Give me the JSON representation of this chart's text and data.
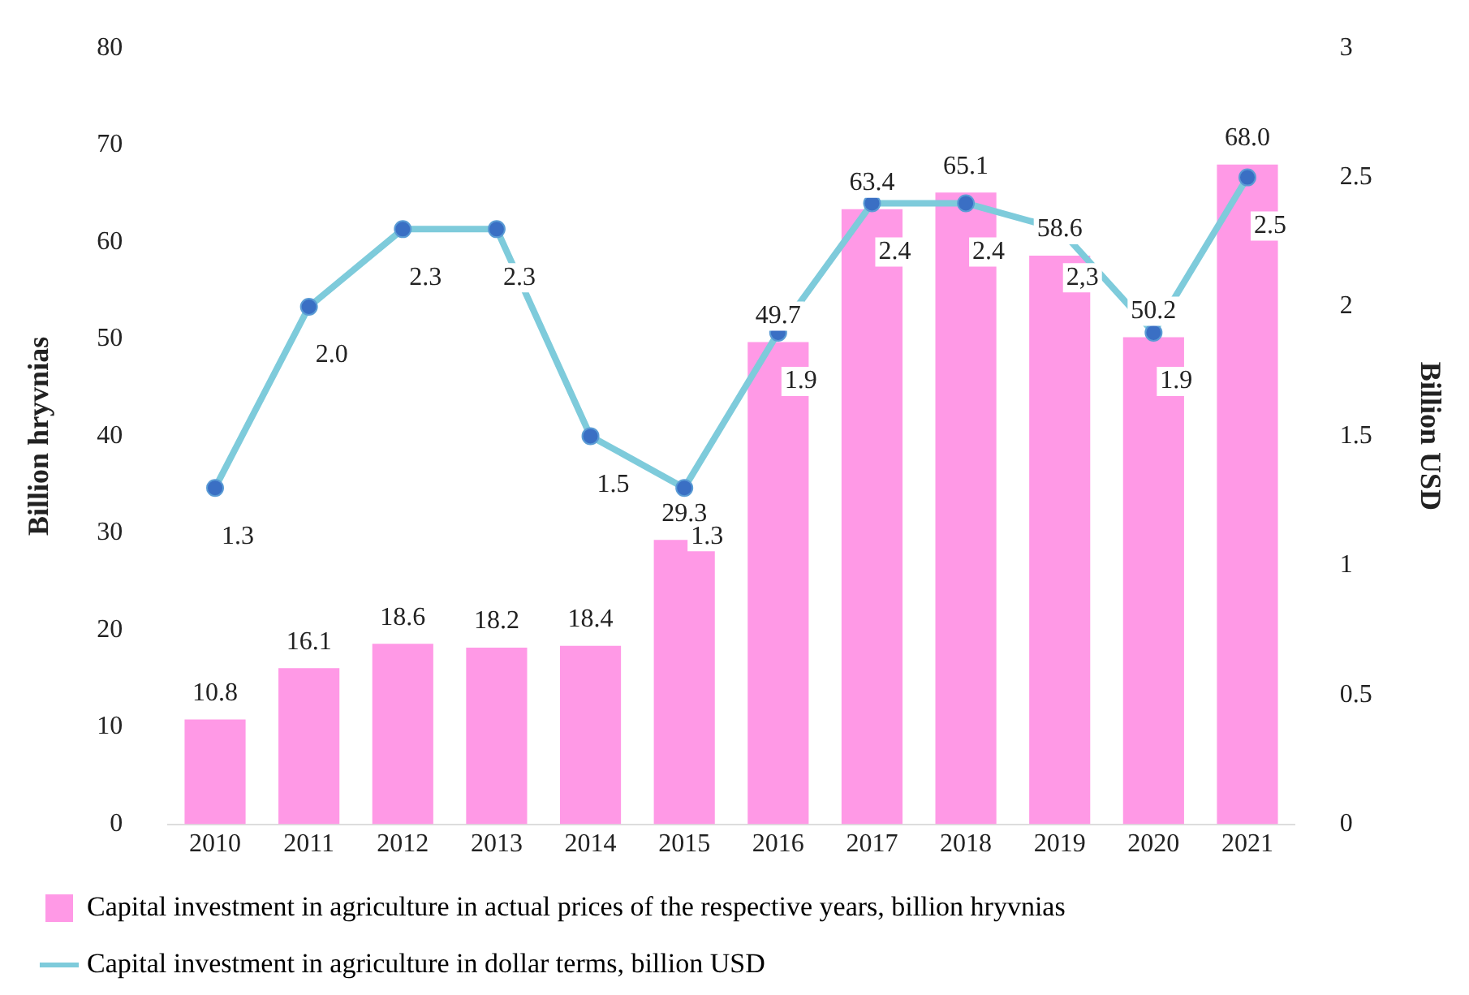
{
  "chart_data": {
    "type": "bar",
    "xlabel": null,
    "ylabel": "Billion hryvnias",
    "y2label": "Billion USD",
    "categories": [
      "2010",
      "2011",
      "2012",
      "2013",
      "2014",
      "2015",
      "2016",
      "2017",
      "2018",
      "2019",
      "2020",
      "2021"
    ],
    "series": [
      {
        "name": "Capital investment in agriculture in actual prices of the respective years, billion hryvnias",
        "color": "#ff99e6",
        "values": [
          10.8,
          16.1,
          18.6,
          18.2,
          18.4,
          29.3,
          49.7,
          63.4,
          65.1,
          58.6,
          50.2,
          68.0
        ],
        "value_labels": [
          "10.8",
          "16.1",
          "18.6",
          "18.2",
          "18.4",
          "29.3",
          "49.7",
          "63.4",
          "65.1",
          "58.6",
          "50.2",
          "68.0"
        ]
      },
      {
        "name": "Capital investment in agriculture in dollar terms, billion USD",
        "type": "line",
        "axis": "y2",
        "color": "#7ecbdb",
        "marker": "circle",
        "values": [
          1.3,
          2.0,
          2.3,
          2.3,
          1.5,
          1.3,
          1.9,
          2.4,
          2.4,
          2.3,
          1.9,
          2.5
        ],
        "value_labels": [
          "1.3",
          "2.0",
          "2.3",
          "2.3",
          "1.5",
          "1.3",
          "1.9",
          "2.4",
          "2.4",
          "2,3",
          "1.9",
          "2.5"
        ]
      }
    ],
    "ylim": [
      0,
      80
    ],
    "yticks": [
      0,
      10,
      20,
      30,
      40,
      50,
      60,
      70,
      80
    ],
    "y2lim": [
      0,
      3
    ],
    "y2ticks": [
      0,
      0.5,
      1,
      1.5,
      2,
      2.5,
      3
    ],
    "grid": false,
    "legend": "bottom"
  }
}
